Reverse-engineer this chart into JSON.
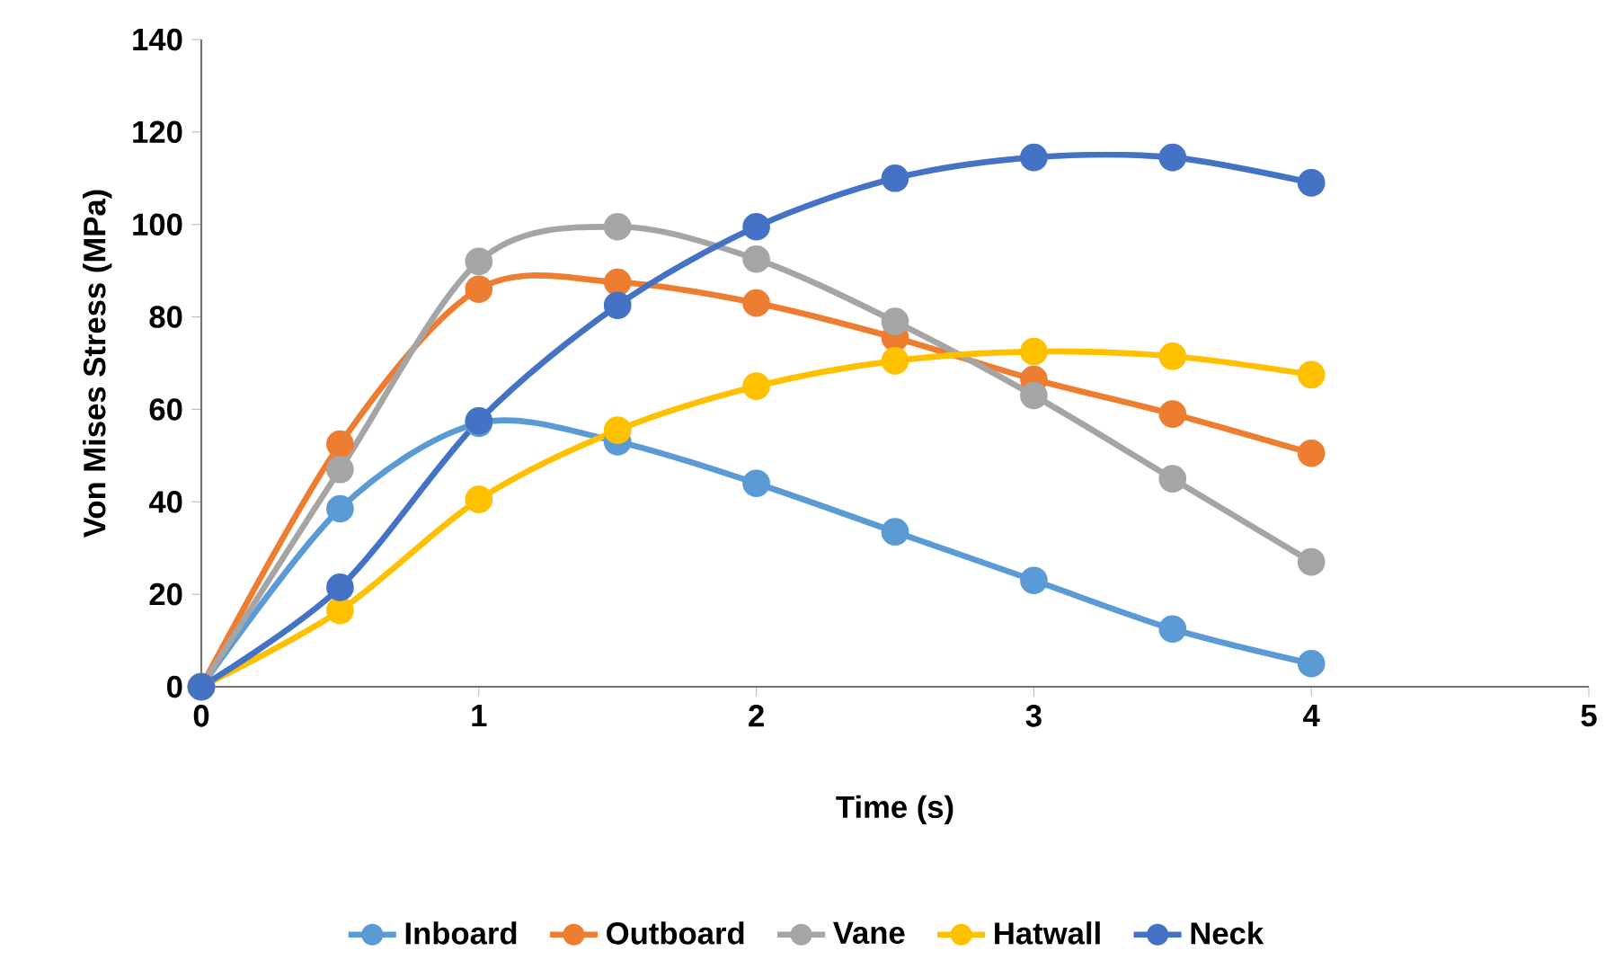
{
  "chart_data": {
    "type": "line",
    "xlabel": "Time (s)",
    "ylabel": "Von Mises Stress (MPa)",
    "x": [
      0,
      0.5,
      1,
      1.5,
      2,
      2.5,
      3,
      3.5,
      4
    ],
    "series": [
      {
        "name": "Inboard",
        "color": "#5b9bd5",
        "values": [
          0,
          38.5,
          57,
          53,
          44,
          33.5,
          23,
          12.5,
          5
        ]
      },
      {
        "name": "Outboard",
        "color": "#ed7d31",
        "values": [
          0,
          52.5,
          86,
          87.5,
          83,
          75.5,
          66.5,
          59,
          50.5
        ]
      },
      {
        "name": "Vane",
        "color": "#a5a5a5",
        "values": [
          0,
          47,
          92,
          99.5,
          92.5,
          79,
          63,
          45,
          27
        ]
      },
      {
        "name": "Hatwall",
        "color": "#ffc000",
        "values": [
          0,
          16.5,
          40.5,
          55.5,
          65,
          70.5,
          72.5,
          71.5,
          67.5
        ]
      },
      {
        "name": "Neck",
        "color": "#4472c4",
        "values": [
          0,
          21.5,
          57.5,
          82.5,
          99.5,
          110,
          114.5,
          114.5,
          109
        ]
      }
    ],
    "xlim": [
      0,
      5
    ],
    "xticks": [
      0,
      1,
      2,
      3,
      4,
      5
    ],
    "ylim": [
      0,
      140
    ],
    "yticks": [
      0,
      20,
      40,
      60,
      80,
      100,
      120,
      140
    ],
    "grid": false,
    "legend": "bottom",
    "marker": "circle",
    "line_style": "solid"
  }
}
